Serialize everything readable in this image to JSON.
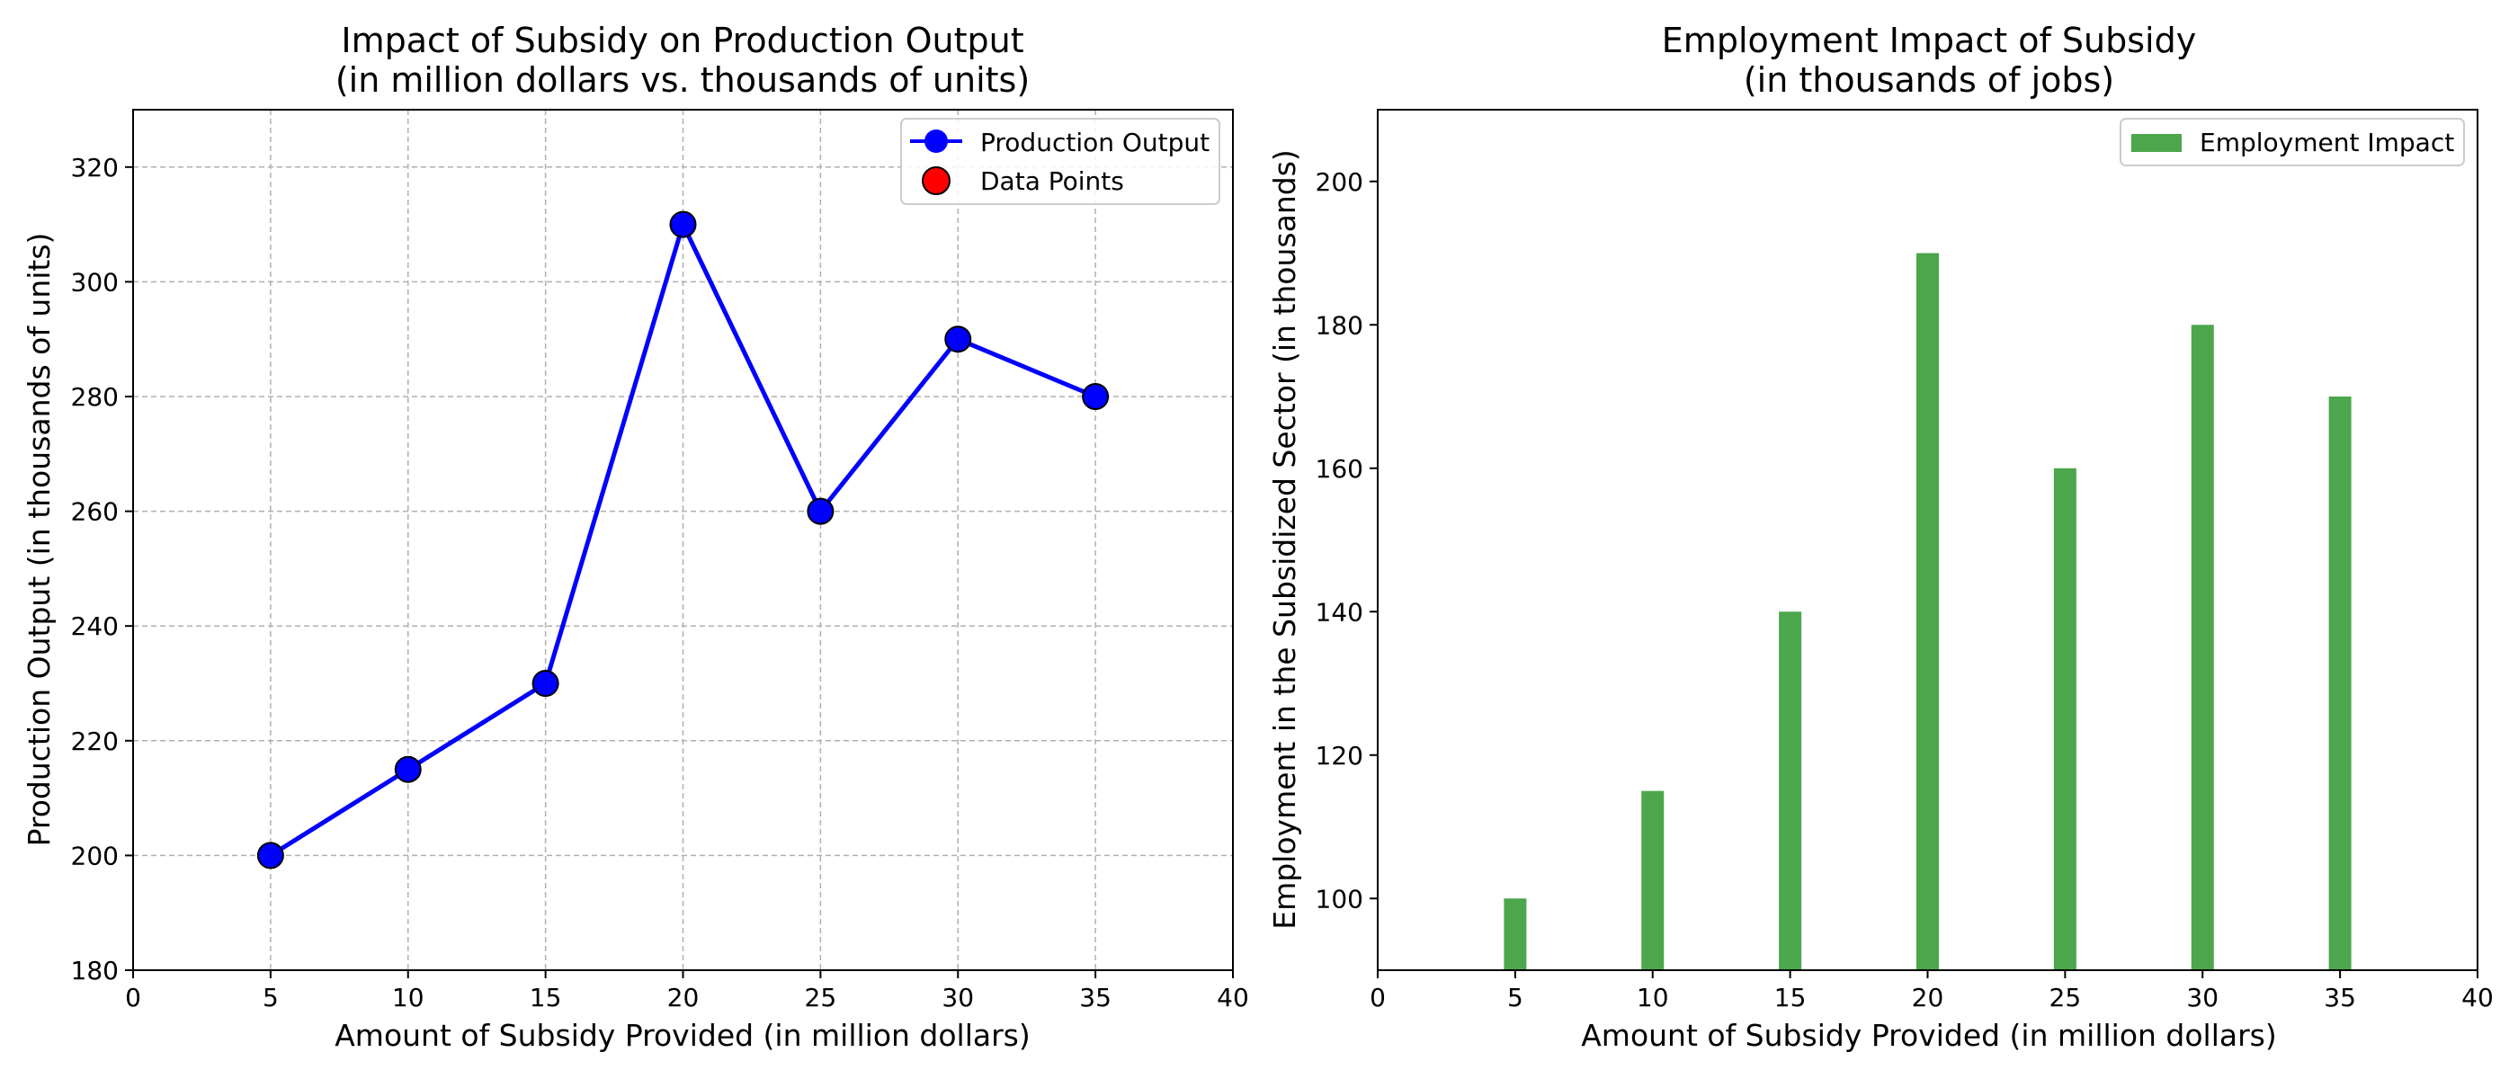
{
  "chart_data": [
    {
      "type": "line",
      "title_line1": "Impact of Subsidy on Production Output",
      "title_line2": "(in million dollars vs. thousands of units)",
      "xlabel": "Amount of Subsidy Provided (in million dollars)",
      "ylabel": "Production Output (in thousands of units)",
      "x": [
        5,
        10,
        15,
        20,
        25,
        30,
        35
      ],
      "series": [
        {
          "name": "Production Output",
          "values": [
            200,
            215,
            230,
            310,
            260,
            290,
            280
          ],
          "color": "#0000ff",
          "marker_color": "#0000ff"
        }
      ],
      "scatter_legend_name": "Data Points",
      "scatter_legend_color": "#ff0000",
      "xlim": [
        0,
        40
      ],
      "ylim": [
        180,
        330
      ],
      "xticks": [
        0,
        5,
        10,
        15,
        20,
        25,
        30,
        35,
        40
      ],
      "yticks": [
        180,
        200,
        220,
        240,
        260,
        280,
        300,
        320
      ],
      "grid": true,
      "legend_position": "top-right"
    },
    {
      "type": "bar",
      "title_line1": "Employment Impact of Subsidy",
      "title_line2": "(in thousands of jobs)",
      "xlabel": "Amount of Subsidy Provided (in million dollars)",
      "ylabel": "Employment in the Subsidized Sector (in thousands)",
      "x": [
        5,
        10,
        15,
        20,
        25,
        30,
        35
      ],
      "series": [
        {
          "name": "Employment Impact",
          "values": [
            100,
            115,
            140,
            190,
            160,
            180,
            170
          ],
          "color": "#4ca64c"
        }
      ],
      "xlim": [
        0,
        40
      ],
      "ylim": [
        90,
        210
      ],
      "xticks": [
        0,
        5,
        10,
        15,
        20,
        25,
        30,
        35,
        40
      ],
      "yticks": [
        100,
        120,
        140,
        160,
        180,
        200
      ],
      "grid": false,
      "legend_position": "top-right"
    }
  ]
}
